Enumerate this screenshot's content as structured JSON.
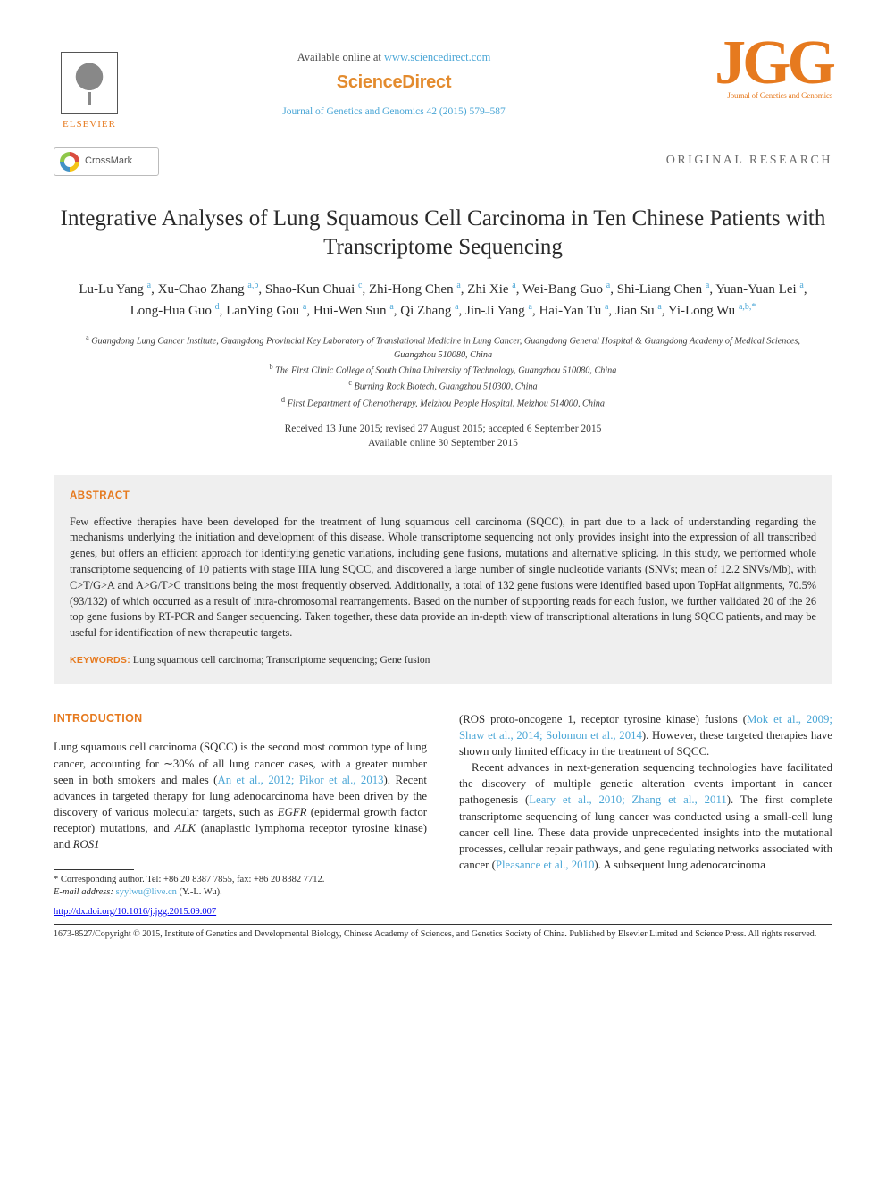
{
  "header": {
    "available_prefix": "Available online at ",
    "available_url": "www.sciencedirect.com",
    "scidirect": "ScienceDirect",
    "journal_citation": "Journal of Genetics and Genomics 42 (2015) 579–587",
    "elsevier": "ELSEVIER",
    "jgg": "JGG",
    "jgg_sub": "Journal of Genetics and Genomics",
    "crossmark": "CrossMark",
    "section": "ORIGINAL RESEARCH"
  },
  "title": "Integrative Analyses of Lung Squamous Cell Carcinoma in Ten Chinese Patients with Transcriptome Sequencing",
  "authors": {
    "list": [
      {
        "name": "Lu-Lu Yang",
        "aff": "a"
      },
      {
        "name": "Xu-Chao Zhang",
        "aff": "a,b"
      },
      {
        "name": "Shao-Kun Chuai",
        "aff": "c"
      },
      {
        "name": "Zhi-Hong Chen",
        "aff": "a"
      },
      {
        "name": "Zhi Xie",
        "aff": "a"
      },
      {
        "name": "Wei-Bang Guo",
        "aff": "a"
      },
      {
        "name": "Shi-Liang Chen",
        "aff": "a"
      },
      {
        "name": "Yuan-Yuan Lei",
        "aff": "a"
      },
      {
        "name": "Long-Hua Guo",
        "aff": "d"
      },
      {
        "name": "LanYing Gou",
        "aff": "a"
      },
      {
        "name": "Hui-Wen Sun",
        "aff": "a"
      },
      {
        "name": "Qi Zhang",
        "aff": "a"
      },
      {
        "name": "Jin-Ji Yang",
        "aff": "a"
      },
      {
        "name": "Hai-Yan Tu",
        "aff": "a"
      },
      {
        "name": "Jian Su",
        "aff": "a"
      },
      {
        "name": "Yi-Long Wu",
        "aff": "a,b,*"
      }
    ]
  },
  "affiliations": {
    "a": "Guangdong Lung Cancer Institute, Guangdong Provincial Key Laboratory of Translational Medicine in Lung Cancer, Guangdong General Hospital & Guangdong Academy of Medical Sciences, Guangzhou 510080, China",
    "b": "The First Clinic College of South China University of Technology, Guangzhou 510080, China",
    "c": "Burning Rock Biotech, Guangzhou 510300, China",
    "d": "First Department of Chemotherapy, Meizhou People Hospital, Meizhou 514000, China"
  },
  "dates": {
    "received": "Received 13 June 2015; revised 27 August 2015; accepted 6 September 2015",
    "online": "Available online 30 September 2015"
  },
  "abstract": {
    "heading": "ABSTRACT",
    "text": "Few effective therapies have been developed for the treatment of lung squamous cell carcinoma (SQCC), in part due to a lack of understanding regarding the mechanisms underlying the initiation and development of this disease. Whole transcriptome sequencing not only provides insight into the expression of all transcribed genes, but offers an efficient approach for identifying genetic variations, including gene fusions, mutations and alternative splicing. In this study, we performed whole transcriptome sequencing of 10 patients with stage IIIA lung SQCC, and discovered a large number of single nucleotide variants (SNVs; mean of 12.2 SNVs/Mb), with C>T/G>A and A>G/T>C transitions being the most frequently observed. Additionally, a total of 132 gene fusions were identified based upon TopHat alignments, 70.5% (93/132) of which occurred as a result of intra-chromosomal rearrangements. Based on the number of supporting reads for each fusion, we further validated 20 of the 26 top gene fusions by RT-PCR and Sanger sequencing. Taken together, these data provide an in-depth view of transcriptional alterations in lung SQCC patients, and may be useful for identification of new therapeutic targets.",
    "keywords_label": "KEYWORDS:",
    "keywords": "Lung squamous cell carcinoma; Transcriptome sequencing; Gene fusion"
  },
  "intro": {
    "heading": "INTRODUCTION",
    "col1_p1_a": "Lung squamous cell carcinoma (SQCC) is the second most common type of lung cancer, accounting for ",
    "col1_p1_tilde": "∼",
    "col1_p1_b": "30% of all lung cancer cases, with a greater number seen in both smokers and males (",
    "col1_p1_ref": "An et al., 2012; Pikor et al., 2013",
    "col1_p1_c": "). Recent advances in targeted therapy for lung adenocarcinoma have been driven by the discovery of various molecular targets, such as ",
    "col1_p1_i1": "EGFR",
    "col1_p1_d": " (epidermal growth factor receptor) mutations, and ",
    "col1_p1_i2": "ALK",
    "col1_p1_e": " (anaplastic lymphoma receptor tyrosine kinase) and ",
    "col1_p1_i3": "ROS1",
    "col2_p1_a": "(ROS proto-oncogene 1, receptor tyrosine kinase) fusions (",
    "col2_p1_ref": "Mok et al., 2009; Shaw et al., 2014; Solomon et al., 2014",
    "col2_p1_b": "). However, these targeted therapies have shown only limited efficacy in the treatment of SQCC.",
    "col2_p2_a": "Recent advances in next-generation sequencing technologies have facilitated the discovery of multiple genetic alteration events important in cancer pathogenesis (",
    "col2_p2_ref": "Leary et al., 2010; Zhang et al., 2011",
    "col2_p2_b": "). The first complete transcriptome sequencing of lung cancer was conducted using a small-cell lung cancer cell line. These data provide unprecedented insights into the mutational processes, cellular repair pathways, and gene regulating networks associated with cancer (",
    "col2_p2_ref2": "Pleasance et al., 2010",
    "col2_p2_c": "). A subsequent lung adenocarcinoma"
  },
  "footnotes": {
    "corresponding": "* Corresponding author. Tel: +86 20 8387 7855, fax: +86 20 8382 7712.",
    "email_label": "E-mail address:",
    "email": "syylwu@live.cn",
    "email_name": " (Y.-L. Wu).",
    "doi": "http://dx.doi.org/10.1016/j.jgg.2015.09.007",
    "copyright": "1673-8527/Copyright © 2015, Institute of Genetics and Developmental Biology, Chinese Academy of Sciences, and Genetics Society of China. Published by Elsevier Limited and Science Press. All rights reserved."
  },
  "colors": {
    "orange": "#e67a1f",
    "link": "#4aa6d6",
    "abstract_bg": "#efefef",
    "text": "#2b2b2b"
  }
}
